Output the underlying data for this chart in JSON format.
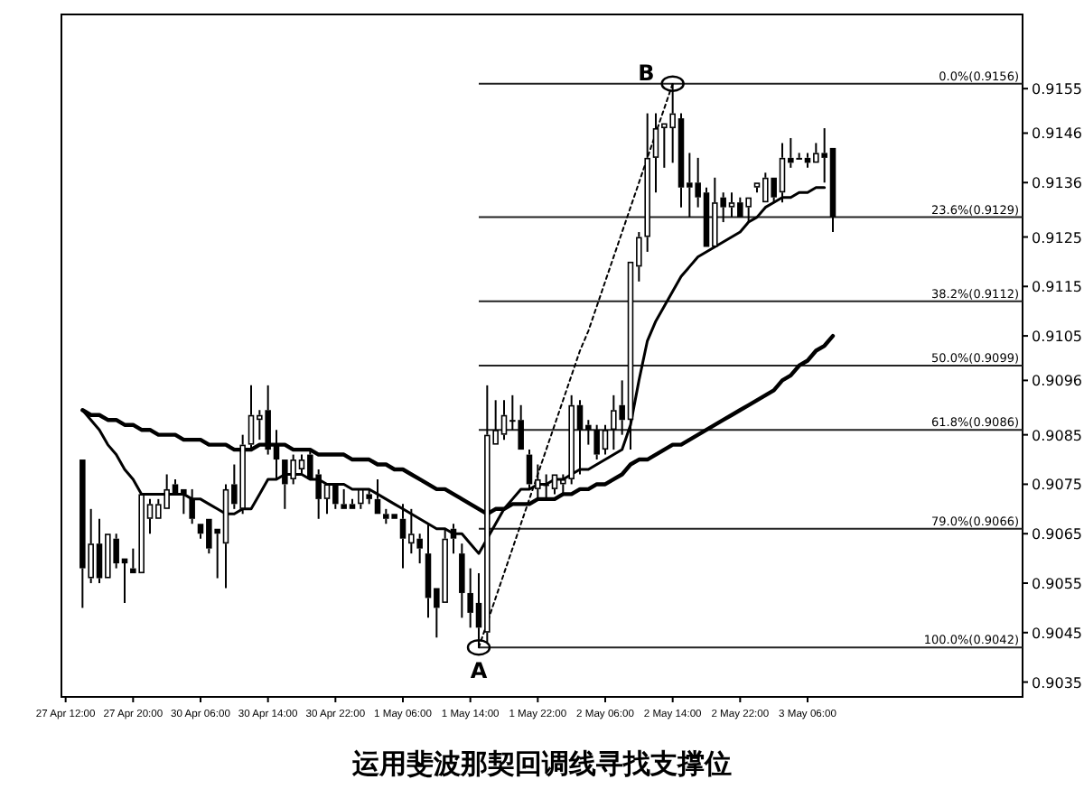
{
  "chart_data": {
    "type": "candlestick",
    "title": "运用斐波那契回调线寻找支撑位",
    "categories": [
      "27 Apr 12:00",
      null,
      null,
      null,
      null,
      null,
      null,
      null,
      "27 Apr 20:00",
      null,
      null,
      null,
      null,
      null,
      null,
      null,
      "30 Apr 06:00",
      null,
      null,
      null,
      null,
      null,
      null,
      null,
      "30 Apr 14:00",
      null,
      null,
      null,
      null,
      null,
      null,
      null,
      "30 Apr 22:00",
      null,
      null,
      null,
      null,
      null,
      null,
      null,
      "1 May 06:00",
      null,
      null,
      null,
      null,
      null,
      null,
      null,
      "1 May 14:00",
      null,
      null,
      null,
      null,
      null,
      null,
      null,
      "1 May 22:00",
      null,
      null,
      null,
      null,
      null,
      null,
      null,
      "2 May 06:00",
      null,
      null,
      null,
      null,
      null,
      null,
      null,
      "2 May 14:00",
      null,
      null,
      null,
      null,
      null,
      null,
      null,
      "2 May 22:00",
      null,
      null,
      null,
      null,
      null,
      null,
      null,
      "3 May 06:00",
      null,
      null,
      null,
      null,
      null,
      null,
      null,
      null,
      null,
      null,
      null,
      null,
      null,
      null,
      null,
      null,
      null,
      null,
      null,
      null,
      null,
      null,
      null,
      null,
      null
    ],
    "ohlc": [
      null,
      null,
      [
        0.908,
        0.908,
        0.905,
        0.9058
      ],
      [
        0.9056,
        0.907,
        0.9055,
        0.9063
      ],
      [
        0.9063,
        0.9068,
        0.9055,
        0.9056
      ],
      [
        0.9056,
        0.9065,
        0.9056,
        0.9065
      ],
      [
        0.9064,
        0.9065,
        0.9058,
        0.9059
      ],
      [
        0.906,
        0.906,
        0.9051,
        0.9059
      ],
      [
        0.9058,
        0.9062,
        0.9057,
        0.9057
      ],
      [
        0.9057,
        0.9073,
        0.9057,
        0.9073
      ],
      [
        0.9068,
        0.9072,
        0.9065,
        0.9071
      ],
      [
        0.9068,
        0.9072,
        0.9068,
        0.9071
      ],
      [
        0.907,
        0.9077,
        0.907,
        0.9074
      ],
      [
        0.9075,
        0.9076,
        0.9073,
        0.9073
      ],
      [
        0.9074,
        0.9074,
        0.9069,
        0.9073
      ],
      [
        0.9072,
        0.9074,
        0.9067,
        0.9068
      ],
      [
        0.9067,
        0.9067,
        0.9064,
        0.9065
      ],
      [
        0.9068,
        0.9068,
        0.9061,
        0.9062
      ],
      [
        0.9066,
        0.9066,
        0.9056,
        0.9065
      ],
      [
        0.9063,
        0.9075,
        0.9054,
        0.9074
      ],
      [
        0.9075,
        0.9079,
        0.907,
        0.9071
      ],
      [
        0.907,
        0.9085,
        0.9069,
        0.9083
      ],
      [
        0.9083,
        0.9095,
        0.9082,
        0.9089
      ],
      [
        0.9088,
        0.909,
        0.9084,
        0.9089
      ],
      [
        0.909,
        0.9095,
        0.9081,
        0.9082
      ],
      [
        0.9083,
        0.9086,
        0.9076,
        0.908
      ],
      [
        0.908,
        0.908,
        0.907,
        0.9075
      ],
      [
        0.9076,
        0.9081,
        0.9075,
        0.908
      ],
      [
        0.9078,
        0.9081,
        0.9077,
        0.908
      ],
      [
        0.9081,
        0.9082,
        0.9076,
        0.9076
      ],
      [
        0.9077,
        0.9078,
        0.9068,
        0.9072
      ],
      [
        0.9072,
        0.9075,
        0.9069,
        0.9075
      ],
      [
        0.9075,
        0.9075,
        0.907,
        0.9071
      ],
      [
        0.9071,
        0.9074,
        0.907,
        0.907
      ],
      [
        0.9071,
        0.9072,
        0.907,
        0.907
      ],
      [
        0.9071,
        0.9074,
        0.907,
        0.9074
      ],
      [
        0.9073,
        0.9074,
        0.9071,
        0.9072
      ],
      [
        0.9072,
        0.9076,
        0.9069,
        0.9069
      ],
      [
        0.9069,
        0.907,
        0.9067,
        0.9068
      ],
      [
        0.9069,
        0.9069,
        0.9068,
        0.9068
      ],
      [
        0.9068,
        0.9071,
        0.9058,
        0.9064
      ],
      [
        0.9063,
        0.907,
        0.9061,
        0.9065
      ],
      [
        0.9064,
        0.9065,
        0.9059,
        0.9062
      ],
      [
        0.9061,
        0.9067,
        0.9048,
        0.9052
      ],
      [
        0.9054,
        0.9054,
        0.9044,
        0.905
      ],
      [
        0.9051,
        0.9066,
        0.9051,
        0.9064
      ],
      [
        0.9066,
        0.9067,
        0.9061,
        0.9064
      ],
      [
        0.9061,
        0.9063,
        0.9048,
        0.9053
      ],
      [
        0.9053,
        0.9058,
        0.9046,
        0.9049
      ],
      [
        0.9051,
        0.9057,
        0.9042,
        0.9046
      ],
      [
        0.9045,
        0.9095,
        0.9043,
        0.9085
      ],
      [
        0.9083,
        0.9092,
        0.9083,
        0.9086
      ],
      [
        0.9085,
        0.9092,
        0.9084,
        0.9089
      ],
      [
        0.9088,
        0.9093,
        0.9086,
        0.9088
      ],
      [
        0.9088,
        0.9091,
        0.9082,
        0.9082
      ],
      [
        0.9081,
        0.9082,
        0.9074,
        0.9075
      ],
      [
        0.9074,
        0.9079,
        0.9072,
        0.9076
      ],
      [
        0.9075,
        0.9077,
        0.9072,
        0.9075
      ],
      [
        0.9074,
        0.9077,
        0.9073,
        0.9077
      ],
      [
        0.9075,
        0.9077,
        0.9073,
        0.9076
      ],
      [
        0.9076,
        0.9093,
        0.9075,
        0.9091
      ],
      [
        0.9091,
        0.9092,
        0.9077,
        0.9086
      ],
      [
        0.9087,
        0.9088,
        0.9083,
        0.9086
      ],
      [
        0.9086,
        0.9087,
        0.908,
        0.9081
      ],
      [
        0.9082,
        0.9087,
        0.9081,
        0.9086
      ],
      [
        0.9086,
        0.9093,
        0.9082,
        0.909
      ],
      [
        0.9091,
        0.9096,
        0.9085,
        0.9088
      ],
      [
        0.9088,
        0.912,
        0.9082,
        0.912
      ],
      [
        0.9119,
        0.9126,
        0.9116,
        0.9125
      ],
      [
        0.9125,
        0.915,
        0.9122,
        0.9141
      ],
      [
        0.9141,
        0.915,
        0.9134,
        0.9147
      ],
      [
        0.9147,
        0.9148,
        0.9139,
        0.9148
      ],
      [
        0.9147,
        0.9156,
        0.914,
        0.915
      ],
      [
        0.9149,
        0.915,
        0.9131,
        0.9135
      ],
      [
        0.9136,
        0.9142,
        0.9129,
        0.9135
      ],
      [
        0.9136,
        0.9141,
        0.9131,
        0.9133
      ],
      [
        0.9134,
        0.9135,
        0.9123,
        0.9123
      ],
      [
        0.9123,
        0.9137,
        0.9123,
        0.9132
      ],
      [
        0.9133,
        0.9134,
        0.9128,
        0.9131
      ],
      [
        0.9131,
        0.9134,
        0.9129,
        0.9132
      ],
      [
        0.9132,
        0.9133,
        0.9129,
        0.9129
      ],
      [
        0.9131,
        0.9133,
        0.9128,
        0.9133
      ],
      [
        0.9135,
        0.9136,
        0.9134,
        0.9136
      ],
      [
        0.9132,
        0.9138,
        0.9132,
        0.9137
      ],
      [
        0.9137,
        0.9137,
        0.9132,
        0.9133
      ],
      [
        0.9134,
        0.9144,
        0.9132,
        0.9141
      ],
      [
        0.9141,
        0.9145,
        0.9139,
        0.914
      ],
      [
        0.9141,
        0.9142,
        0.9141,
        0.9141
      ],
      [
        0.9141,
        0.9142,
        0.9139,
        0.914
      ],
      [
        0.914,
        0.9144,
        0.914,
        0.9142
      ],
      [
        0.9142,
        0.9147,
        0.9136,
        0.9141
      ],
      [
        0.9143,
        0.9143,
        0.9126,
        0.9129
      ],
      null,
      null,
      null,
      null,
      null,
      null,
      null,
      null,
      null,
      null,
      null,
      null,
      null,
      null,
      null,
      null,
      null,
      null,
      null,
      null,
      null,
      null
    ],
    "series": [
      {
        "type": "line",
        "color": "#000000",
        "line_style": "solid",
        "values": [
          null,
          null,
          0.909,
          0.9089,
          0.9089,
          0.9088,
          0.9088,
          0.9087,
          0.9087,
          0.9086,
          0.9086,
          0.9085,
          0.9085,
          0.9085,
          0.9084,
          0.9084,
          0.9084,
          0.9083,
          0.9083,
          0.9083,
          0.9082,
          0.9082,
          0.9082,
          0.9083,
          0.9083,
          0.9083,
          0.9083,
          0.9082,
          0.9082,
          0.9082,
          0.9081,
          0.9081,
          0.9081,
          0.9081,
          0.908,
          0.908,
          0.908,
          0.9079,
          0.9079,
          0.9078,
          0.9078,
          0.9077,
          0.9076,
          0.9075,
          0.9074,
          0.9074,
          0.9073,
          0.9072,
          0.9071,
          0.907,
          0.9069,
          0.907,
          0.907,
          0.9071,
          0.9071,
          0.9071,
          0.9072,
          0.9072,
          0.9072,
          0.9073,
          0.9073,
          0.9074,
          0.9074,
          0.9075,
          0.9075,
          0.9076,
          0.9077,
          0.9079,
          0.908,
          0.908,
          0.9081,
          0.9082,
          0.9083,
          0.9083,
          0.9084,
          0.9085,
          0.9086,
          0.9087,
          0.9088,
          0.9089,
          0.909,
          0.9091,
          0.9092,
          0.9093,
          0.9094,
          0.9096,
          0.9097,
          0.9099,
          0.91,
          0.9102,
          0.9103,
          0.9105,
          null,
          null,
          null,
          null,
          null,
          null,
          null,
          null,
          null,
          null,
          null,
          null,
          null,
          null,
          null,
          null,
          null,
          null,
          null,
          null,
          null,
          null
        ]
      },
      {
        "type": "line",
        "color": "#000000",
        "line_style": "solid",
        "values": [
          null,
          null,
          0.909,
          0.9088,
          0.9086,
          0.9083,
          0.9081,
          0.9078,
          0.9076,
          0.9073,
          0.9073,
          0.9073,
          0.9073,
          0.9073,
          0.9073,
          0.9072,
          0.9072,
          0.9071,
          0.907,
          0.9069,
          0.9069,
          0.907,
          0.907,
          0.9073,
          0.9076,
          0.9076,
          0.9077,
          0.9077,
          0.9077,
          0.9076,
          0.9076,
          0.9075,
          0.9075,
          0.9075,
          0.9074,
          0.9074,
          0.9074,
          0.9073,
          0.9072,
          0.9071,
          0.907,
          0.9069,
          0.9068,
          0.9067,
          0.9066,
          0.9066,
          0.9065,
          0.9065,
          0.9063,
          0.9061,
          0.9064,
          0.9067,
          0.907,
          0.9072,
          0.9074,
          0.9074,
          0.9075,
          0.9075,
          0.9076,
          0.9076,
          0.9077,
          0.9078,
          0.9078,
          0.9079,
          0.908,
          0.9081,
          0.9082,
          0.9087,
          0.9096,
          0.9104,
          0.9108,
          0.9111,
          0.9114,
          0.9117,
          0.9119,
          0.9121,
          0.9122,
          0.9123,
          0.9124,
          0.9125,
          0.9126,
          0.9128,
          0.9129,
          0.9131,
          0.9132,
          0.9133,
          0.9133,
          0.9134,
          0.9134,
          0.9135,
          0.9135,
          null,
          null,
          null,
          null,
          null,
          null,
          null,
          null,
          null,
          null,
          null,
          null,
          null,
          null,
          null,
          null,
          null,
          null,
          null,
          null,
          null,
          null,
          null
        ]
      },
      {
        "type": "line",
        "color": "#000000",
        "line_style": "dotted",
        "values": [
          null,
          null,
          null,
          null,
          null,
          null,
          null,
          null,
          null,
          null,
          null,
          null,
          null,
          null,
          null,
          null,
          null,
          null,
          null,
          null,
          null,
          null,
          null,
          null,
          null,
          null,
          null,
          null,
          null,
          null,
          null,
          null,
          null,
          null,
          null,
          null,
          null,
          null,
          null,
          null,
          null,
          null,
          null,
          null,
          null,
          null,
          null,
          null,
          null,
          0.9042,
          0.9047,
          0.9052,
          0.9057,
          0.9062,
          0.9067,
          0.9072,
          0.9077,
          0.9082,
          0.9087,
          0.9092,
          0.9097,
          0.9102,
          0.9106,
          0.9111,
          0.9116,
          0.9121,
          0.9126,
          0.9131,
          0.9136,
          0.9141,
          0.9146,
          0.9151,
          0.9156,
          null,
          null,
          null,
          null,
          null,
          null,
          null,
          null,
          null,
          null,
          null,
          null,
          null,
          null,
          null,
          null,
          null,
          null,
          null,
          null,
          null,
          null,
          null,
          null,
          null,
          null,
          null,
          null,
          null,
          null,
          null,
          null,
          null,
          null,
          null,
          null,
          null,
          null,
          null,
          null,
          null
        ]
      }
    ],
    "ylim": [
      0.9032,
      0.917
    ],
    "yticks": [
      0.9155,
      0.9146,
      0.9136,
      0.9125,
      0.9115,
      0.9105,
      0.9096,
      0.9085,
      0.9075,
      0.9065,
      0.9055,
      0.9045,
      0.9035
    ],
    "ref_lines": [
      {
        "axis": "y",
        "value": 0.9156,
        "label": "0.0%(0.9156)"
      },
      {
        "axis": "y",
        "value": 0.9129,
        "label": "23.6%(0.9129)"
      },
      {
        "axis": "y",
        "value": 0.9112,
        "label": "38.2%(0.9112)"
      },
      {
        "axis": "y",
        "value": 0.9099,
        "label": "50.0%(0.9099)"
      },
      {
        "axis": "y",
        "value": 0.9086,
        "label": "61.8%(0.9086)"
      },
      {
        "axis": "y",
        "value": 0.9066,
        "label": "79.0%(0.9066)"
      },
      {
        "axis": "y",
        "value": 0.9042,
        "label": "100.0%(0.9042)"
      }
    ],
    "annotations": [
      {
        "text": "A",
        "y": 0.9042
      },
      {
        "text": "B",
        "y": 0.9156
      }
    ],
    "grid": false
  }
}
